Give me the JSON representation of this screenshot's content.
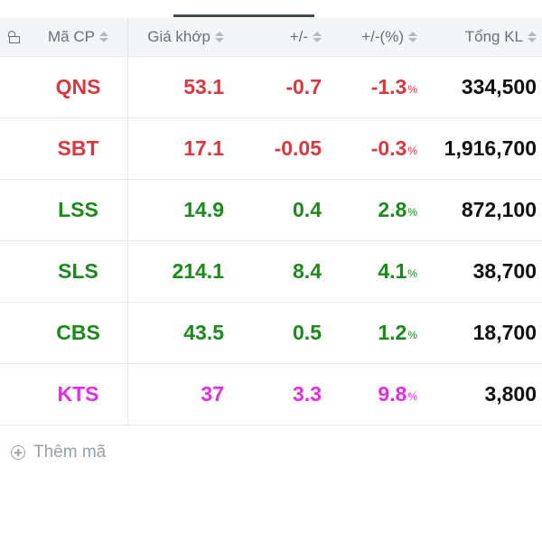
{
  "header": {
    "symbol": "Mã CP",
    "price": "Giá khớp",
    "change": "+/-",
    "percent": "+/-(%)",
    "volume": "Tổng KL"
  },
  "rows": [
    {
      "symbol": "QNS",
      "price": "53.1",
      "change": "-0.7",
      "percent": "-1.3",
      "volume": "334,500",
      "color": "red"
    },
    {
      "symbol": "SBT",
      "price": "17.1",
      "change": "-0.05",
      "percent": "-0.3",
      "volume": "1,916,700",
      "color": "red"
    },
    {
      "symbol": "LSS",
      "price": "14.9",
      "change": "0.4",
      "percent": "2.8",
      "volume": "872,100",
      "color": "green"
    },
    {
      "symbol": "SLS",
      "price": "214.1",
      "change": "8.4",
      "percent": "4.1",
      "volume": "38,700",
      "color": "green"
    },
    {
      "symbol": "CBS",
      "price": "43.5",
      "change": "0.5",
      "percent": "1.2",
      "volume": "18,700",
      "color": "green"
    },
    {
      "symbol": "KTS",
      "price": "37",
      "change": "3.3",
      "percent": "9.8",
      "volume": "3,800",
      "color": "magenta"
    }
  ],
  "percent_sign": "%",
  "add_symbol": {
    "label": "Thêm mã",
    "icon": "plus-circle-icon"
  },
  "colors": {
    "red": "#d9383f",
    "green": "#1a8a1a",
    "magenta": "#e52ce5"
  }
}
